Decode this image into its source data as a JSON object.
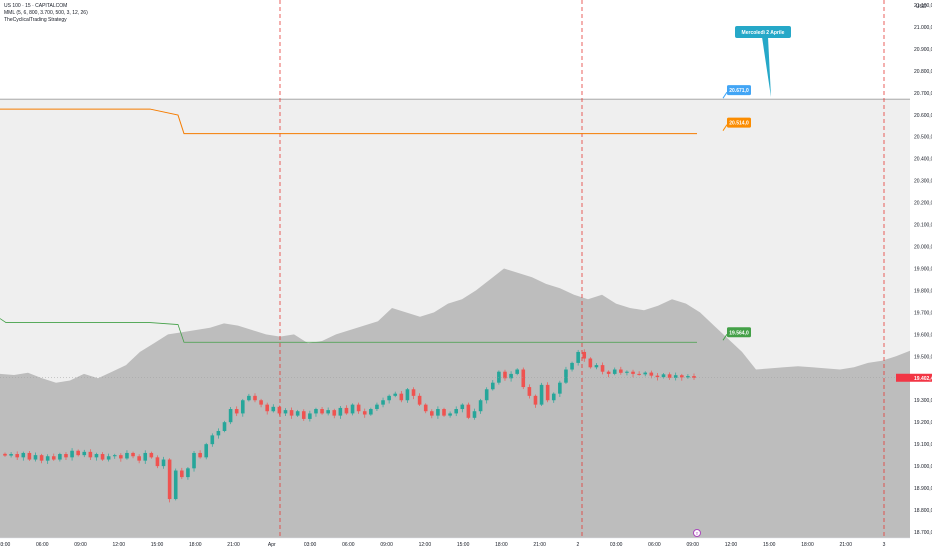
{
  "header": {
    "symbol_line": "US 100 · 15 · CAPITALCOM",
    "indicator_1": "MML (5, 6, 800, 3.700, 500, 3, 12, 26)",
    "indicator_2": "TheCyclicalTrading Strategy"
  },
  "axis": {
    "currency": "USD",
    "price_ticks": [
      "21.100,0",
      "21.000,0",
      "20.900,0",
      "20.800,0",
      "20.700,0",
      "20.600,0",
      "20.500,0",
      "20.400,0",
      "20.300,0",
      "20.200,0",
      "20.100,0",
      "20.000,0",
      "19.900,0",
      "19.800,0",
      "19.700,0",
      "19.600,0",
      "19.500,0",
      "19.400,0",
      "19.300,0",
      "19.200,0",
      "19.100,0",
      "19.000,0",
      "18.900,0",
      "18.800,0",
      "18.700,0"
    ],
    "time_ticks": [
      "03:00",
      "06:00",
      "09:00",
      "12:00",
      "15:00",
      "18:00",
      "21:00",
      "Apr",
      "03:00",
      "06:00",
      "09:00",
      "12:00",
      "15:00",
      "18:00",
      "21:00",
      "2",
      "03:00",
      "06:00",
      "09:00",
      "12:00",
      "15:00",
      "18:00",
      "21:00",
      "3"
    ]
  },
  "labels": {
    "upper_level": "20.671,0",
    "orange_level": "20.514,0",
    "green_level": "19.564,0",
    "current_price": "19.402,4",
    "callout": "Mercoledì 2 Aprile",
    "bottom_marker": "T"
  },
  "colors": {
    "bull": "#26a69a",
    "bear": "#ef5350",
    "orange_line": "#f57c00",
    "green_line": "#43a047",
    "cloud": "#bdbdbd",
    "band": "#efefef",
    "session_line": "#e53935",
    "callout_fill": "#26a8c8",
    "upper_tag": "#42a5f5",
    "orange_tag": "#fb8c00",
    "green_tag": "#43a047",
    "price_tag": "#f23645"
  },
  "chart_data": {
    "type": "candlestick",
    "symbol": "US 100",
    "timeframe": "15",
    "close_series": [
      19048,
      19055,
      19040,
      19060,
      19030,
      19050,
      19025,
      19045,
      19030,
      19055,
      19040,
      19070,
      19050,
      19065,
      19040,
      19055,
      19030,
      19045,
      19050,
      19035,
      19060,
      19045,
      19025,
      19060,
      19040,
      19000,
      19030,
      18850,
      18980,
      18950,
      18990,
      19060,
      19040,
      19100,
      19140,
      19160,
      19200,
      19260,
      19240,
      19300,
      19320,
      19300,
      19280,
      19250,
      19270,
      19240,
      19255,
      19230,
      19250,
      19215,
      19240,
      19260,
      19240,
      19255,
      19230,
      19265,
      19240,
      19280,
      19250,
      19235,
      19260,
      19280,
      19300,
      19320,
      19330,
      19300,
      19350,
      19320,
      19280,
      19250,
      19230,
      19260,
      19230,
      19240,
      19260,
      19280,
      19220,
      19250,
      19300,
      19350,
      19380,
      19430,
      19400,
      19420,
      19440,
      19360,
      19320,
      19280,
      19370,
      19300,
      19330,
      19380,
      19440,
      19470,
      19520,
      19490,
      19450,
      19460,
      19430,
      19420,
      19440,
      19425,
      19430,
      19420,
      19418,
      19426,
      19412,
      19405,
      19418,
      19402,
      19414,
      19404,
      19410,
      19402
    ],
    "orange_line": {
      "start": 20626,
      "end": 20514
    },
    "green_line": {
      "start": 19672,
      "end": 19564
    },
    "upper_level": 20671,
    "current_price": 19402.4,
    "cloud_top": [
      19420,
      19415,
      19425,
      19400,
      19380,
      19390,
      19420,
      19400,
      19430,
      19460,
      19520,
      19560,
      19600,
      19610,
      19620,
      19630,
      19650,
      19640,
      19620,
      19600,
      19590,
      19600,
      19560,
      19570,
      19600,
      19620,
      19640,
      19660,
      19720,
      19700,
      19680,
      19700,
      19740,
      19760,
      19800,
      19850,
      19900,
      19880,
      19860,
      19830,
      19810,
      19780,
      19760,
      19780,
      19740,
      19720,
      19710,
      19730,
      19760,
      19740,
      19700,
      19640,
      19580,
      19520,
      19440,
      19445,
      19450,
      19455,
      19450,
      19445,
      19440,
      19450,
      19470,
      19480,
      19500,
      19525
    ],
    "ylim": [
      18700,
      21150
    ]
  }
}
